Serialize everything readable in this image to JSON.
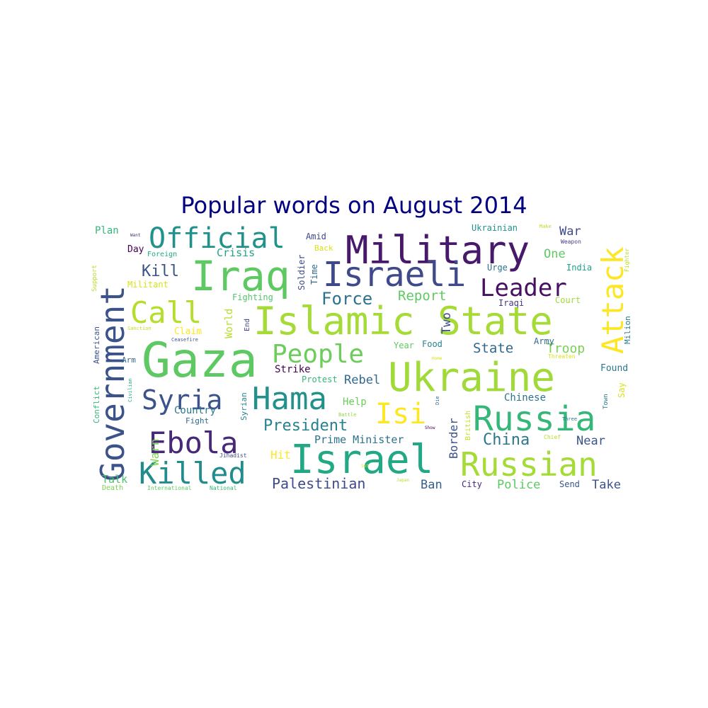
{
  "chart_data": {
    "type": "wordcloud",
    "title": "Popular words on August 2014",
    "background": "#ffffff",
    "title_color": "#000080",
    "colormap": "viridis",
    "words": [
      {
        "text": "Islamic State",
        "weight": 54,
        "color": "#a5db36"
      },
      {
        "text": "Ukraine",
        "weight": 56,
        "color": "#a0da39"
      },
      {
        "text": "Gaza",
        "weight": 68,
        "color": "#5ec962"
      },
      {
        "text": "Military",
        "weight": 54,
        "color": "#48186a"
      },
      {
        "text": "Israel",
        "weight": 56,
        "color": "#22a884"
      },
      {
        "text": "Russian",
        "weight": 46,
        "color": "#a5db36"
      },
      {
        "text": "Russia",
        "weight": 48,
        "color": "#35b779"
      },
      {
        "text": "Iraq",
        "weight": 58,
        "color": "#5ec962"
      },
      {
        "text": "Government",
        "weight": 46,
        "color": "#3b528b"
      },
      {
        "text": "Israeli",
        "weight": 48,
        "color": "#3e4a89"
      },
      {
        "text": "Attack",
        "weight": 42,
        "color": "#fde725"
      },
      {
        "text": "Killed",
        "weight": 42,
        "color": "#228c8d"
      },
      {
        "text": "Hama",
        "weight": 44,
        "color": "#21918c"
      },
      {
        "text": "Ebola",
        "weight": 42,
        "color": "#482878"
      },
      {
        "text": "Official",
        "weight": 40,
        "color": "#21918c"
      },
      {
        "text": "Call",
        "weight": 42,
        "color": "#b5de2b"
      },
      {
        "text": "People",
        "weight": 36,
        "color": "#6ccd5a"
      },
      {
        "text": "Syria",
        "weight": 38,
        "color": "#3b528b"
      },
      {
        "text": "Leader",
        "weight": 34,
        "color": "#471063"
      },
      {
        "text": "Isi",
        "weight": 40,
        "color": "#fde725"
      },
      {
        "text": "Force",
        "weight": 24,
        "color": "#2c728e"
      },
      {
        "text": "President",
        "weight": 22,
        "color": "#26828e"
      },
      {
        "text": "Palestinian",
        "weight": 20,
        "color": "#3e4a89"
      },
      {
        "text": "China",
        "weight": 22,
        "color": "#2a788e"
      },
      {
        "text": "Kill",
        "weight": 22,
        "color": "#3b528b"
      },
      {
        "text": "Report",
        "weight": 19,
        "color": "#5ec962"
      },
      {
        "text": "State",
        "weight": 19,
        "color": "#31688e"
      },
      {
        "text": "Troop",
        "weight": 18,
        "color": "#7ad151"
      },
      {
        "text": "Prime Minister",
        "weight": 15,
        "color": "#2c728e"
      },
      {
        "text": "Police",
        "weight": 17,
        "color": "#5ec962"
      },
      {
        "text": "Take",
        "weight": 17,
        "color": "#3b528b"
      },
      {
        "text": "Ban",
        "weight": 17,
        "color": "#355f8d"
      },
      {
        "text": "Near",
        "weight": 17,
        "color": "#39568c"
      },
      {
        "text": "Rebel",
        "weight": 17,
        "color": "#31688e"
      },
      {
        "text": "Crisis",
        "weight": 15,
        "color": "#20a486"
      },
      {
        "text": "War",
        "weight": 17,
        "color": "#3e4a89"
      },
      {
        "text": "One",
        "weight": 17,
        "color": "#5ec962"
      },
      {
        "text": "Two",
        "weight": 17,
        "color": "#3e4a89"
      },
      {
        "text": "Border",
        "weight": 16,
        "color": "#3b528b"
      },
      {
        "text": "Warn",
        "weight": 16,
        "color": "#7ad151"
      },
      {
        "text": "Talk",
        "weight": 15,
        "color": "#4ac16d"
      },
      {
        "text": "Hit",
        "weight": 16,
        "color": "#fde725"
      },
      {
        "text": "Country",
        "weight": 14,
        "color": "#2a788e"
      },
      {
        "text": "Strike",
        "weight": 14,
        "color": "#440154"
      },
      {
        "text": "Help",
        "weight": 14,
        "color": "#6ccd5a"
      },
      {
        "text": "Chinese",
        "weight": 14,
        "color": "#2c728e"
      },
      {
        "text": "Claim",
        "weight": 13,
        "color": "#fde725"
      },
      {
        "text": "World",
        "weight": 14,
        "color": "#b5de2b"
      },
      {
        "text": "Fighting",
        "weight": 12,
        "color": "#52c569"
      },
      {
        "text": "Plan",
        "weight": 14,
        "color": "#35b779"
      },
      {
        "text": "Day",
        "weight": 13,
        "color": "#440154"
      },
      {
        "text": "Militant",
        "weight": 12,
        "color": "#d8e219"
      },
      {
        "text": "Found",
        "weight": 13,
        "color": "#2a788e"
      },
      {
        "text": "Send",
        "weight": 12,
        "color": "#39568c"
      },
      {
        "text": "City",
        "weight": 12,
        "color": "#482878"
      },
      {
        "text": "Army",
        "weight": 12,
        "color": "#31688e"
      },
      {
        "text": "Year",
        "weight": 12,
        "color": "#5ec962"
      },
      {
        "text": "Food",
        "weight": 12,
        "color": "#26828e"
      },
      {
        "text": "Urge",
        "weight": 12,
        "color": "#2c728e"
      },
      {
        "text": "Iraqi",
        "weight": 12,
        "color": "#443983"
      },
      {
        "text": "Court",
        "weight": 12,
        "color": "#a0da39"
      },
      {
        "text": "India",
        "weight": 12,
        "color": "#1fa188"
      },
      {
        "text": "Ukrainian",
        "weight": 12,
        "color": "#21918c"
      },
      {
        "text": "Amid",
        "weight": 12,
        "color": "#3e4a89"
      },
      {
        "text": "Back",
        "weight": 11,
        "color": "#d8e219"
      },
      {
        "text": "Soldier",
        "weight": 12,
        "color": "#3e4a89"
      },
      {
        "text": "Time",
        "weight": 12,
        "color": "#31688e"
      },
      {
        "text": "Protest",
        "weight": 12,
        "color": "#35b779"
      },
      {
        "text": "Syrian",
        "weight": 11,
        "color": "#26828e"
      },
      {
        "text": "End",
        "weight": 10,
        "color": "#414487"
      },
      {
        "text": "Say",
        "weight": 12,
        "color": "#d8e219"
      },
      {
        "text": "Milion",
        "weight": 11,
        "color": "#2a788e"
      },
      {
        "text": "Arm",
        "weight": 11,
        "color": "#31688e"
      },
      {
        "text": "Fight",
        "weight": 11,
        "color": "#31688e"
      },
      {
        "text": "Conflict",
        "weight": 11,
        "color": "#35b779"
      },
      {
        "text": "American",
        "weight": 11,
        "color": "#3b528b"
      },
      {
        "text": "Foreign",
        "weight": 10,
        "color": "#22a884"
      },
      {
        "text": "Support",
        "weight": 9,
        "color": "#b5de2b"
      },
      {
        "text": "Sanction",
        "weight": 7,
        "color": "#bddf26"
      },
      {
        "text": "Ceasefire",
        "weight": 7,
        "color": "#3b528b"
      },
      {
        "text": "Civilian",
        "weight": 7,
        "color": "#22a884"
      },
      {
        "text": "Jihadist",
        "weight": 8,
        "color": "#3e4a89"
      },
      {
        "text": "Battle",
        "weight": 7,
        "color": "#8fd744"
      },
      {
        "text": "Death",
        "weight": 10,
        "color": "#7ad151"
      },
      {
        "text": "International",
        "weight": 8,
        "color": "#5ec962"
      },
      {
        "text": "National",
        "weight": 8,
        "color": "#35b779"
      },
      {
        "text": "Threaten",
        "weight": 8,
        "color": "#d8e219"
      },
      {
        "text": "Three",
        "weight": 7,
        "color": "#2a788e"
      },
      {
        "text": "Chief",
        "weight": 8,
        "color": "#b5de2b"
      },
      {
        "text": "British",
        "weight": 10,
        "color": "#c2df23"
      },
      {
        "text": "Town",
        "weight": 9,
        "color": "#2c728e"
      },
      {
        "text": "Weapon",
        "weight": 8,
        "color": "#433e85"
      },
      {
        "text": "Make",
        "weight": 7,
        "color": "#b5de2b"
      },
      {
        "text": "Fighter",
        "weight": 8,
        "color": "#b5de2b"
      },
      {
        "text": "Want",
        "weight": 6,
        "color": "#482878"
      },
      {
        "text": "Home",
        "weight": 6,
        "color": "#d8e219"
      },
      {
        "text": "Die",
        "weight": 7,
        "color": "#31688e"
      },
      {
        "text": "Show",
        "weight": 6,
        "color": "#440154"
      },
      {
        "text": "Japan",
        "weight": 6,
        "color": "#b5de2b"
      },
      {
        "text": "Set",
        "weight": 6,
        "color": "#d8e219"
      }
    ]
  }
}
